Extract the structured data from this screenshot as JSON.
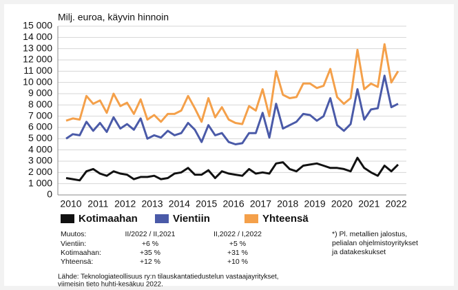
{
  "chart_data": {
    "type": "line",
    "ylabel": "Milj. euroa, käyvin hinnoin",
    "categories": [
      "2010",
      null,
      null,
      null,
      "2011",
      null,
      null,
      null,
      "2012",
      null,
      null,
      null,
      "2013",
      null,
      null,
      null,
      "2014",
      null,
      null,
      null,
      "2015",
      null,
      null,
      null,
      "2016",
      null,
      null,
      null,
      "2017",
      null,
      null,
      null,
      "2018",
      null,
      null,
      null,
      "2019",
      null,
      null,
      null,
      "2020",
      null,
      null,
      null,
      "2021",
      null,
      null,
      null,
      "2022",
      null
    ],
    "series": [
      {
        "name": "Kotimaahan",
        "color": "#111111",
        "values": [
          1500,
          1400,
          1300,
          2100,
          2300,
          1900,
          1700,
          2100,
          1900,
          1800,
          1400,
          1600,
          1600,
          1700,
          1400,
          1500,
          1900,
          2000,
          2400,
          1800,
          1800,
          2200,
          1500,
          2100,
          1900,
          1800,
          1700,
          2300,
          1900,
          2000,
          1900,
          2800,
          2900,
          2300,
          2100,
          2600,
          2700,
          2800,
          2600,
          2400,
          2400,
          2300,
          2100,
          3300,
          2400,
          2000,
          1700,
          2600,
          2100,
          2700
        ]
      },
      {
        "name": "Vientiin",
        "color": "#4a5aa8",
        "values": [
          5000,
          5400,
          5300,
          6500,
          5700,
          6400,
          5600,
          6900,
          5900,
          6300,
          5800,
          6800,
          5000,
          5300,
          5100,
          5700,
          5300,
          5500,
          6400,
          5800,
          4700,
          6200,
          5300,
          5500,
          4700,
          4500,
          4600,
          5500,
          5500,
          7300,
          5100,
          8100,
          5900,
          6200,
          6500,
          7200,
          7100,
          6600,
          7000,
          8600,
          6200,
          5700,
          6300,
          9400,
          6700,
          7600,
          7700,
          10600,
          7800,
          8100
        ]
      },
      {
        "name": "Yhteensä",
        "color": "#f4a04a",
        "values": [
          6600,
          6800,
          6700,
          8800,
          8100,
          8400,
          7300,
          9000,
          7900,
          8200,
          7200,
          8500,
          6700,
          7100,
          6500,
          7200,
          7200,
          7500,
          8800,
          7700,
          6500,
          8600,
          6900,
          7800,
          6700,
          6400,
          6300,
          7900,
          7500,
          9400,
          7000,
          11000,
          8900,
          8600,
          8700,
          9900,
          9900,
          9500,
          9700,
          11200,
          8700,
          8100,
          8600,
          12900,
          9400,
          9900,
          9600,
          13400,
          10000,
          11000
        ]
      }
    ],
    "ylim": [
      0,
      15000
    ],
    "yticks": [
      0,
      {
        "value": 1000,
        "label": "1 000"
      },
      {
        "value": 2000,
        "label": "2 000"
      },
      {
        "value": 3000,
        "label": "3 000"
      },
      {
        "value": 4000,
        "label": "4 000"
      },
      {
        "value": 5000,
        "label": "5 000"
      },
      {
        "value": 6000,
        "label": "6 000"
      },
      {
        "value": 7000,
        "label": "7 000"
      },
      {
        "value": 8000,
        "label": "8 000"
      },
      {
        "value": 9000,
        "label": "9 000"
      },
      {
        "value": 10000,
        "label": "10 000"
      },
      {
        "value": 11000,
        "label": "11 000"
      },
      {
        "value": 12000,
        "label": "12 000"
      },
      {
        "value": 13000,
        "label": "13 000"
      },
      {
        "value": 14000,
        "label": "14 000"
      },
      {
        "value": 15000,
        "label": "15 000"
      }
    ],
    "grid": true,
    "changes": {
      "header": [
        "Muutos:",
        "II/2022 / II,2021",
        "II,2022 / I,2022"
      ],
      "rows": [
        [
          "Vientiin:",
          "+6 %",
          "+5 %"
        ],
        [
          "Kotimaahan:",
          "+35 %",
          "+31 %"
        ],
        [
          "Yhteensä:",
          "+12 %",
          "+10 %"
        ]
      ]
    },
    "footnote": [
      "*) Pl. metallien jalostus,",
      "pelialan ohjelmistoyritykset",
      "ja datakeskukset"
    ],
    "source": [
      "Lähde: Teknologiateollisuus ry:n tilauskantatiedustelun vastaajayritykset,",
      "viimeisin tieto huhti-kesäkuu 2022."
    ]
  }
}
